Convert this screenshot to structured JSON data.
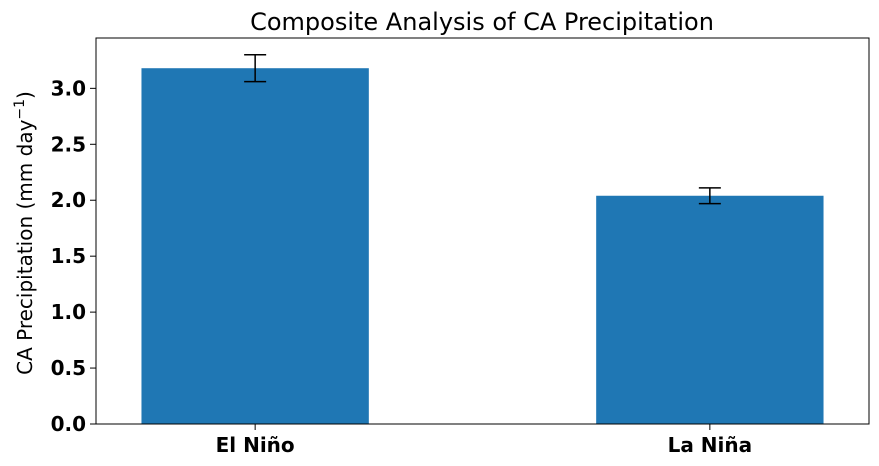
{
  "chart_data": {
    "type": "bar",
    "title": "Composite Analysis of CA Precipitation",
    "xlabel": "",
    "ylabel": "CA Precipitation (mm day",
    "ylabel_sup": "−1",
    "ylabel_close": ")",
    "categories": [
      "El Niño",
      "La Niña"
    ],
    "values": [
      3.18,
      2.04
    ],
    "errors": [
      0.12,
      0.07
    ],
    "ylim": [
      0,
      3.45
    ],
    "yticks": [
      "0.0",
      "0.5",
      "1.0",
      "1.5",
      "2.0",
      "2.5",
      "3.0"
    ],
    "ytick_values": [
      0,
      0.5,
      1.0,
      1.5,
      2.0,
      2.5,
      3.0
    ],
    "bar_color": "#1f77b4",
    "grid": false
  }
}
